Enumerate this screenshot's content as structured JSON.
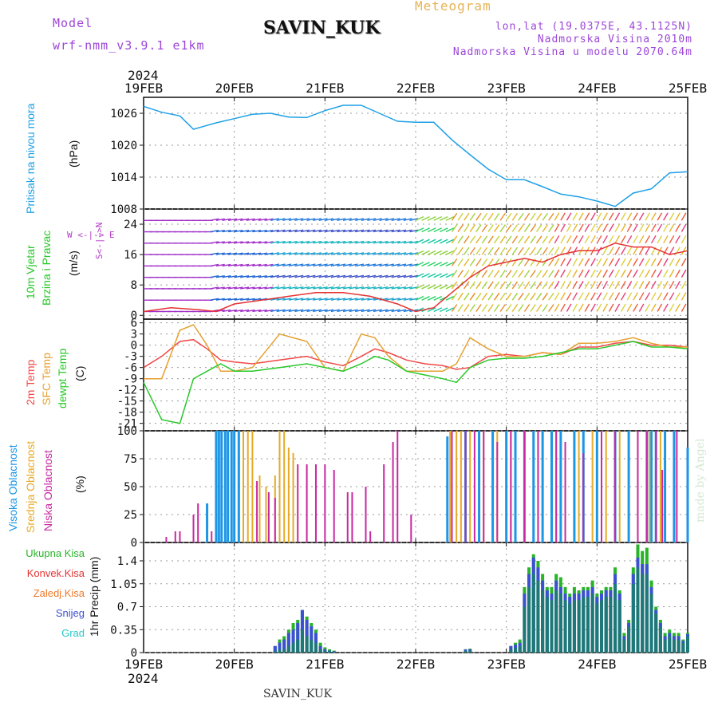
{
  "header": {
    "model_label": "Model",
    "model_version": "wrf-nmm_v3.9.1 e1km",
    "station": "SAVIN_KUK",
    "meteogram_title": "Meteogram",
    "location": "lon,lat (19.0375E, 43.1125N)",
    "altitude": "Nadmorska Visina 2010m",
    "model_altitude": "Nadmorska Visina u modelu 2070.64m"
  },
  "footer": {
    "station": "SAVIN_KUK",
    "credit": "made by Angel"
  },
  "time_axis": {
    "year": "2024",
    "ticks": [
      "19FEB",
      "20FEB",
      "21FEB",
      "22FEB",
      "23FEB",
      "24FEB",
      "25FEB"
    ]
  },
  "colors": {
    "pressure": "#1ea0e6",
    "temp2m": "#f04848",
    "sfc_temp": "#e6a030",
    "dewpoint": "#28c828",
    "cloud_high": "#1e96e6",
    "cloud_mid": "#e6aa28",
    "cloud_low": "#c828a0",
    "precip_total": "#28b428",
    "precip_conv": "#e63232",
    "precip_frozen": "#f07828",
    "precip_snow": "#3c50d2",
    "precip_graupel": "#28c8c8",
    "wind_label": "#28c828",
    "wind_dir": "#b43cc8"
  },
  "panels": {
    "pressure": {
      "label": "Pritisak na nivou mora",
      "unit": "(hPa)"
    },
    "wind": {
      "label1": "10m Vjetar",
      "label2": "Brzina i Pravac",
      "unit": "(m/s)",
      "dir_compass": "W <-|-> E",
      "dir_ns": "S<-|->N"
    },
    "temp": {
      "label1": "2m Temp",
      "label2": "SFC Temp",
      "label3": "dewpt Temp",
      "unit": "(C)"
    },
    "cloud": {
      "label1": "Visoka Oblacnost",
      "label2": "Srednja Oblacnost",
      "label3": "Niska Oblacnost",
      "unit": "(%)"
    },
    "precip": {
      "total": "Ukupna Kisa",
      "conv": "Konvek.Kisa",
      "frozen": "Zaledj.Kisa",
      "snow": "Snijeg",
      "graupel": "Grad",
      "unit": "1hr Precip (mm)"
    }
  },
  "chart_data": [
    {
      "type": "line",
      "name": "pressure",
      "ylim": [
        1008,
        1029
      ],
      "yticks": [
        1008,
        1014,
        1020,
        1026
      ],
      "x_days": [
        0,
        0.2,
        0.4,
        0.55,
        0.8,
        1.0,
        1.2,
        1.4,
        1.6,
        1.8,
        2.0,
        2.2,
        2.4,
        2.6,
        2.8,
        3.0,
        3.2,
        3.4,
        3.6,
        3.8,
        4.0,
        4.2,
        4.4,
        4.6,
        4.8,
        5.0,
        5.2,
        5.4,
        5.6,
        5.8,
        6.0
      ],
      "values": [
        1027.3,
        1026.2,
        1025.5,
        1023.0,
        1024.2,
        1025.0,
        1025.8,
        1026.0,
        1025.3,
        1025.2,
        1026.5,
        1027.5,
        1027.5,
        1026.0,
        1024.5,
        1024.3,
        1024.3,
        1021.0,
        1018.2,
        1015.5,
        1013.5,
        1013.5,
        1012.2,
        1010.8,
        1010.3,
        1009.5,
        1008.5,
        1011.0,
        1011.8,
        1014.8,
        1015.0
      ]
    },
    {
      "type": "line",
      "name": "wind",
      "ylim": [
        -1,
        28
      ],
      "yticks": [
        0,
        8,
        16,
        24
      ],
      "x_days": [
        0,
        0.3,
        0.6,
        0.8,
        1.0,
        1.3,
        1.6,
        1.9,
        2.2,
        2.5,
        2.8,
        3.0,
        3.2,
        3.4,
        3.6,
        3.8,
        4.0,
        4.2,
        4.4,
        4.6,
        4.8,
        5.0,
        5.2,
        5.4,
        5.6,
        5.8,
        6.0
      ],
      "values": [
        1,
        2,
        1.5,
        1,
        3,
        4,
        5,
        6,
        6,
        5,
        3,
        1,
        2,
        6,
        10,
        13,
        14,
        15,
        14,
        16,
        17,
        17,
        19,
        18,
        18,
        16,
        17
      ]
    },
    {
      "type": "line",
      "name": "temperature",
      "ylim": [
        -23,
        7
      ],
      "yticks": [
        6,
        3,
        0,
        -3,
        -6,
        -9,
        -12,
        -15,
        -18,
        -21
      ],
      "x_days": [
        0,
        0.2,
        0.4,
        0.55,
        0.7,
        0.85,
        1.0,
        1.2,
        1.5,
        1.8,
        2.0,
        2.2,
        2.4,
        2.55,
        2.7,
        2.9,
        3.1,
        3.3,
        3.45,
        3.6,
        3.8,
        4.0,
        4.2,
        4.4,
        4.6,
        4.8,
        5.0,
        5.2,
        5.4,
        5.6,
        5.8,
        6.0
      ],
      "series": [
        {
          "key": "temp2m",
          "values": [
            -6,
            -3,
            1,
            1.5,
            -1,
            -4,
            -4.5,
            -5,
            -4,
            -3,
            -4.5,
            -5.5,
            -3,
            -1,
            -2,
            -4,
            -5,
            -5.5,
            -6.5,
            -6,
            -3,
            -2.5,
            -3,
            -2,
            -2.5,
            -0.5,
            -0.5,
            0.5,
            1,
            0,
            0,
            -0.5
          ]
        },
        {
          "key": "sfc_temp",
          "values": [
            -9,
            -9,
            4,
            5.5,
            0,
            -7,
            -7,
            -6,
            3,
            1,
            -6,
            -7,
            3,
            2,
            -3,
            -7,
            -7,
            -7,
            -5,
            2,
            -1,
            -3,
            -3,
            -2,
            -2.5,
            0.5,
            0.5,
            1,
            2,
            0.5,
            -0.5,
            -0.5
          ]
        },
        {
          "key": "dewpoint",
          "values": [
            -10,
            -20,
            -21,
            -9,
            -7,
            -5,
            -7,
            -7,
            -6,
            -5,
            -6,
            -7,
            -5,
            -3,
            -4,
            -7,
            -8,
            -9,
            -10,
            -6,
            -4,
            -3.5,
            -3.5,
            -3,
            -2,
            -1,
            -1,
            0,
            1,
            -0.5,
            -0.5,
            -1
          ]
        }
      ]
    },
    {
      "type": "bar",
      "name": "cloud cover",
      "ylim": [
        0,
        100
      ],
      "yticks": [
        0,
        25,
        50,
        75,
        100
      ],
      "high": [
        [
          0.7,
          35
        ],
        [
          0.72,
          0
        ],
        [
          0.8,
          100
        ],
        [
          0.83,
          100
        ],
        [
          0.86,
          100
        ],
        [
          0.9,
          100
        ],
        [
          0.93,
          100
        ],
        [
          0.97,
          100
        ],
        [
          1.0,
          100
        ],
        [
          1.05,
          100
        ],
        [
          3.35,
          95
        ],
        [
          3.55,
          100
        ],
        [
          3.7,
          100
        ],
        [
          3.85,
          100
        ],
        [
          4.0,
          100
        ],
        [
          4.1,
          100
        ],
        [
          4.2,
          100
        ],
        [
          4.3,
          100
        ],
        [
          4.4,
          100
        ],
        [
          4.5,
          100
        ],
        [
          4.6,
          100
        ],
        [
          4.75,
          100
        ],
        [
          4.85,
          100
        ],
        [
          5.0,
          100
        ],
        [
          5.2,
          100
        ],
        [
          5.35,
          100
        ],
        [
          5.55,
          100
        ],
        [
          5.6,
          100
        ],
        [
          5.65,
          100
        ],
        [
          5.75,
          100
        ],
        [
          5.85,
          100
        ],
        [
          6.0,
          85
        ]
      ],
      "mid": [
        [
          1.1,
          100
        ],
        [
          1.15,
          100
        ],
        [
          1.2,
          100
        ],
        [
          1.28,
          60
        ],
        [
          1.35,
          50
        ],
        [
          1.45,
          60
        ],
        [
          1.5,
          100
        ],
        [
          1.55,
          100
        ],
        [
          1.6,
          85
        ],
        [
          1.65,
          80
        ],
        [
          3.38,
          100
        ],
        [
          3.45,
          100
        ],
        [
          3.5,
          100
        ],
        [
          3.6,
          100
        ],
        [
          3.75,
          100
        ],
        [
          3.9,
          100
        ],
        [
          4.05,
          100
        ],
        [
          4.2,
          100
        ],
        [
          4.35,
          100
        ],
        [
          4.55,
          100
        ],
        [
          4.8,
          100
        ],
        [
          4.95,
          100
        ],
        [
          5.1,
          100
        ],
        [
          5.25,
          100
        ],
        [
          5.45,
          100
        ],
        [
          5.58,
          100
        ],
        [
          5.7,
          100
        ]
      ],
      "low": [
        [
          0.25,
          5
        ],
        [
          0.35,
          10
        ],
        [
          0.4,
          10
        ],
        [
          0.55,
          25
        ],
        [
          0.6,
          35
        ],
        [
          0.75,
          10
        ],
        [
          1.25,
          55
        ],
        [
          1.38,
          45
        ],
        [
          1.45,
          40
        ],
        [
          1.7,
          70
        ],
        [
          1.8,
          70
        ],
        [
          1.9,
          70
        ],
        [
          2.0,
          70
        ],
        [
          2.1,
          65
        ],
        [
          2.25,
          45
        ],
        [
          2.3,
          45
        ],
        [
          2.45,
          50
        ],
        [
          2.5,
          10
        ],
        [
          2.65,
          70
        ],
        [
          2.75,
          90
        ],
        [
          2.8,
          100
        ],
        [
          2.95,
          25
        ],
        [
          3.4,
          100
        ],
        [
          3.55,
          100
        ],
        [
          3.65,
          100
        ],
        [
          3.75,
          100
        ],
        [
          3.9,
          90
        ],
        [
          4.05,
          100
        ],
        [
          4.2,
          100
        ],
        [
          4.35,
          100
        ],
        [
          4.55,
          100
        ],
        [
          4.65,
          90
        ],
        [
          4.85,
          80
        ],
        [
          5.05,
          100
        ],
        [
          5.2,
          100
        ],
        [
          5.45,
          100
        ],
        [
          5.55,
          100
        ],
        [
          5.65,
          100
        ],
        [
          5.72,
          65
        ],
        [
          5.88,
          100
        ]
      ]
    },
    {
      "type": "bar",
      "name": "precipitation",
      "ylim": [
        0,
        1.68
      ],
      "yticks": [
        0,
        0.35,
        0.7,
        1.05,
        1.4
      ],
      "x_days": [
        1.45,
        1.5,
        1.55,
        1.6,
        1.65,
        1.7,
        1.75,
        1.8,
        1.85,
        1.9,
        1.95,
        2.0,
        2.05,
        2.1,
        3.55,
        3.6,
        4.05,
        4.1,
        4.15,
        4.2,
        4.25,
        4.3,
        4.35,
        4.4,
        4.45,
        4.5,
        4.55,
        4.6,
        4.65,
        4.7,
        4.75,
        4.8,
        4.85,
        4.9,
        4.95,
        5.0,
        5.05,
        5.1,
        5.15,
        5.2,
        5.25,
        5.3,
        5.35,
        5.4,
        5.45,
        5.5,
        5.55,
        5.6,
        5.65,
        5.7,
        5.75,
        5.8,
        5.85,
        5.9,
        5.95,
        6.0
      ],
      "total": [
        0.1,
        0.2,
        0.25,
        0.35,
        0.45,
        0.5,
        0.65,
        0.55,
        0.45,
        0.35,
        0.15,
        0.08,
        0.05,
        0.03,
        0.05,
        0.06,
        0.1,
        0.15,
        0.2,
        1.0,
        1.3,
        1.5,
        1.4,
        1.2,
        1.0,
        1.0,
        1.2,
        1.15,
        1.0,
        0.9,
        1.0,
        0.95,
        1.0,
        1.0,
        1.1,
        0.9,
        0.95,
        1.0,
        1.0,
        1.3,
        0.95,
        0.3,
        0.5,
        1.3,
        1.65,
        1.55,
        1.6,
        1.1,
        0.7,
        0.5,
        0.3,
        0.35,
        0.3,
        0.3,
        0.2,
        0.3
      ],
      "snow": [
        0.1,
        0.15,
        0.2,
        0.3,
        0.35,
        0.45,
        0.65,
        0.5,
        0.4,
        0.3,
        0.1,
        0.05,
        0.03,
        0.02,
        0.05,
        0.05,
        0.1,
        0.12,
        0.15,
        0.9,
        1.2,
        1.45,
        1.3,
        1.1,
        0.95,
        0.9,
        1.1,
        1.0,
        0.9,
        0.85,
        0.9,
        0.9,
        0.95,
        0.95,
        1.0,
        0.85,
        0.9,
        0.95,
        0.95,
        1.2,
        0.9,
        0.25,
        0.45,
        1.2,
        1.45,
        1.35,
        1.35,
        1.0,
        0.65,
        0.45,
        0.25,
        0.3,
        0.25,
        0.25,
        0.18,
        0.28
      ],
      "graupel": [
        0.02,
        0.05,
        0.05,
        0.1,
        0.15,
        0.2,
        0.35,
        0.25,
        0.2,
        0.15,
        0.05,
        0.03,
        0.02,
        0.01,
        0.03,
        0.03,
        0.05,
        0.07,
        0.1,
        0.7,
        1.0,
        1.2,
        1.1,
        0.95,
        0.85,
        0.8,
        0.95,
        0.9,
        0.8,
        0.75,
        0.8,
        0.8,
        0.85,
        0.85,
        0.9,
        0.75,
        0.8,
        0.85,
        0.85,
        1.05,
        0.8,
        0.2,
        0.4,
        1.05,
        1.3,
        1.2,
        1.2,
        0.9,
        0.6,
        0.4,
        0.2,
        0.25,
        0.2,
        0.2,
        0.15,
        0.25
      ]
    }
  ]
}
